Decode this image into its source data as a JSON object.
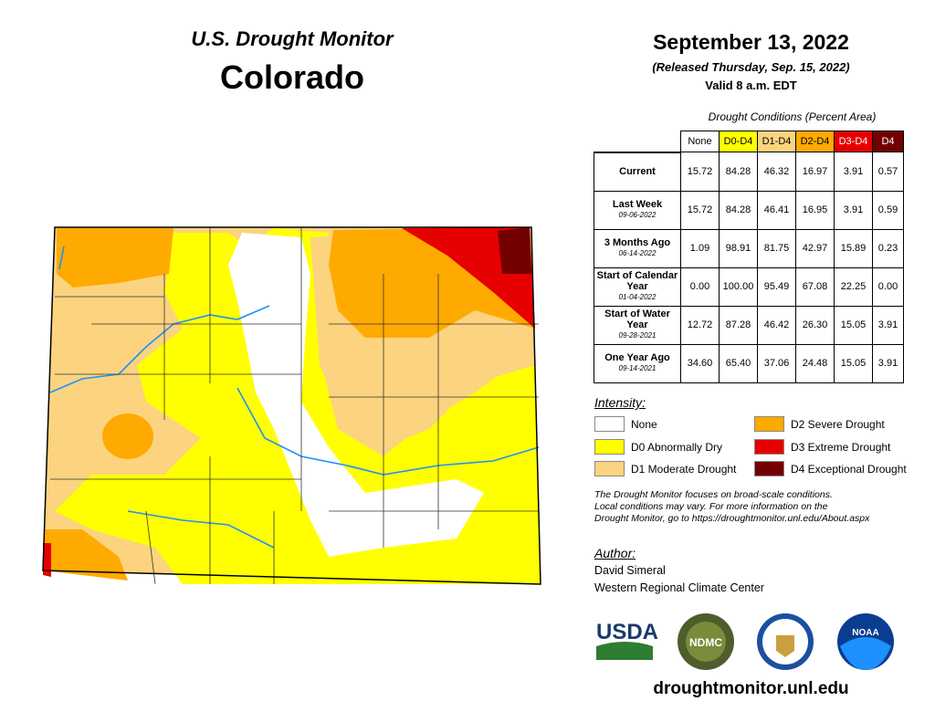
{
  "header": {
    "supertitle": "U.S. Drought Monitor",
    "title": "Colorado"
  },
  "release": {
    "date": "September 13, 2022",
    "released": "(Released Thursday, Sep. 15, 2022)",
    "valid": "Valid 8 a.m. EDT"
  },
  "table": {
    "caption": "Drought Conditions (Percent Area)",
    "columns": [
      "None",
      "D0-D4",
      "D1-D4",
      "D2-D4",
      "D3-D4",
      "D4"
    ],
    "rows": [
      {
        "label": "Current",
        "date": "",
        "values": [
          "15.72",
          "84.28",
          "46.32",
          "16.97",
          "3.91",
          "0.57"
        ]
      },
      {
        "label": "Last Week",
        "date": "09-06-2022",
        "values": [
          "15.72",
          "84.28",
          "46.41",
          "16.95",
          "3.91",
          "0.59"
        ]
      },
      {
        "label": "3 Months Ago",
        "date": "06-14-2022",
        "values": [
          "1.09",
          "98.91",
          "81.75",
          "42.97",
          "15.89",
          "0.23"
        ]
      },
      {
        "label": "Start of Calendar Year",
        "date": "01-04-2022",
        "values": [
          "0.00",
          "100.00",
          "95.49",
          "67.08",
          "22.25",
          "0.00"
        ]
      },
      {
        "label": "Start of Water Year",
        "date": "09-28-2021",
        "values": [
          "12.72",
          "87.28",
          "46.42",
          "26.30",
          "15.05",
          "3.91"
        ]
      },
      {
        "label": "One Year Ago",
        "date": "09-14-2021",
        "values": [
          "34.60",
          "65.40",
          "37.06",
          "24.48",
          "15.05",
          "3.91"
        ]
      }
    ]
  },
  "legend": {
    "title": "Intensity:",
    "items": [
      {
        "label": "None",
        "color": "#ffffff"
      },
      {
        "label": "D0 Abnormally Dry",
        "color": "#ffff00"
      },
      {
        "label": "D1 Moderate Drought",
        "color": "#fcd37f"
      },
      {
        "label": "D2 Severe Drought",
        "color": "#ffaa00"
      },
      {
        "label": "D3 Extreme Drought",
        "color": "#e60000"
      },
      {
        "label": "D4 Exceptional Drought",
        "color": "#730000"
      }
    ]
  },
  "note": [
    "The Drought Monitor focuses on broad-scale conditions.",
    "Local conditions may vary. For more information on the",
    "Drought Monitor, go to https://droughtmonitor.unl.edu/About.aspx"
  ],
  "author": {
    "title": "Author:",
    "name": "David Simeral",
    "org": "Western Regional Climate Center"
  },
  "logos": {
    "usda": "USDA",
    "ndmc": "NDMC",
    "noaa": "NOAA"
  },
  "footer": {
    "url": "droughtmonitor.unl.edu"
  }
}
